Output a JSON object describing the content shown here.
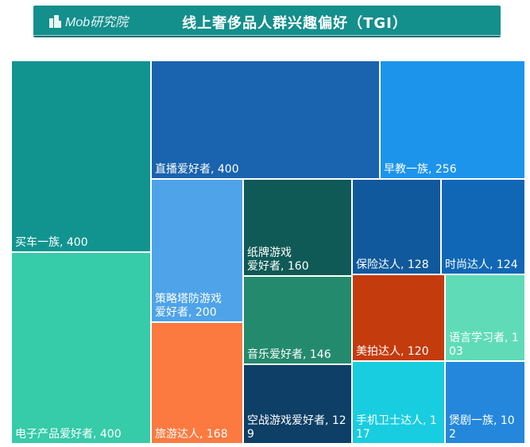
{
  "header": {
    "logo_text": "Mob研究院",
    "title": "线上奢侈品人群兴趣偏好（TGI）",
    "banner_color": "#138f8c"
  },
  "chart_data": {
    "type": "treemap",
    "title": "线上奢侈品人群兴趣偏好（TGI）",
    "cells": [
      {
        "name": "买车一族",
        "value": 400,
        "color": "#119490"
      },
      {
        "name": "电子产品爱好者",
        "value": 400,
        "color": "#36cba9"
      },
      {
        "name": "直播爱好者",
        "value": 400,
        "color": "#1a63ae"
      },
      {
        "name": "早教一族",
        "value": 256,
        "color": "#1c94ec"
      },
      {
        "name": "策略塔防游戏爱好者",
        "value": 200,
        "color": "#4ea3e9"
      },
      {
        "name": "旅游达人",
        "value": 168,
        "color": "#fc7a40"
      },
      {
        "name": "纸牌游戏爱好者",
        "value": 160,
        "color": "#0f5a56"
      },
      {
        "name": "音乐爱好者",
        "value": 146,
        "color": "#248a6e"
      },
      {
        "name": "空战游戏爱好者",
        "value": 129,
        "color": "#0e3f66"
      },
      {
        "name": "保险达人",
        "value": 128,
        "color": "#10599c"
      },
      {
        "name": "时尚达人",
        "value": 124,
        "color": "#1067b6"
      },
      {
        "name": "美拍达人",
        "value": 120,
        "color": "#c43b0d"
      },
      {
        "name": "语言学习者",
        "value": 103,
        "color": "#5fdcb7"
      },
      {
        "name": "手机卫士达人",
        "value": 117,
        "color": "#18cde0"
      },
      {
        "name": "煲剧一族",
        "value": 102,
        "color": "#2487dc"
      }
    ]
  }
}
